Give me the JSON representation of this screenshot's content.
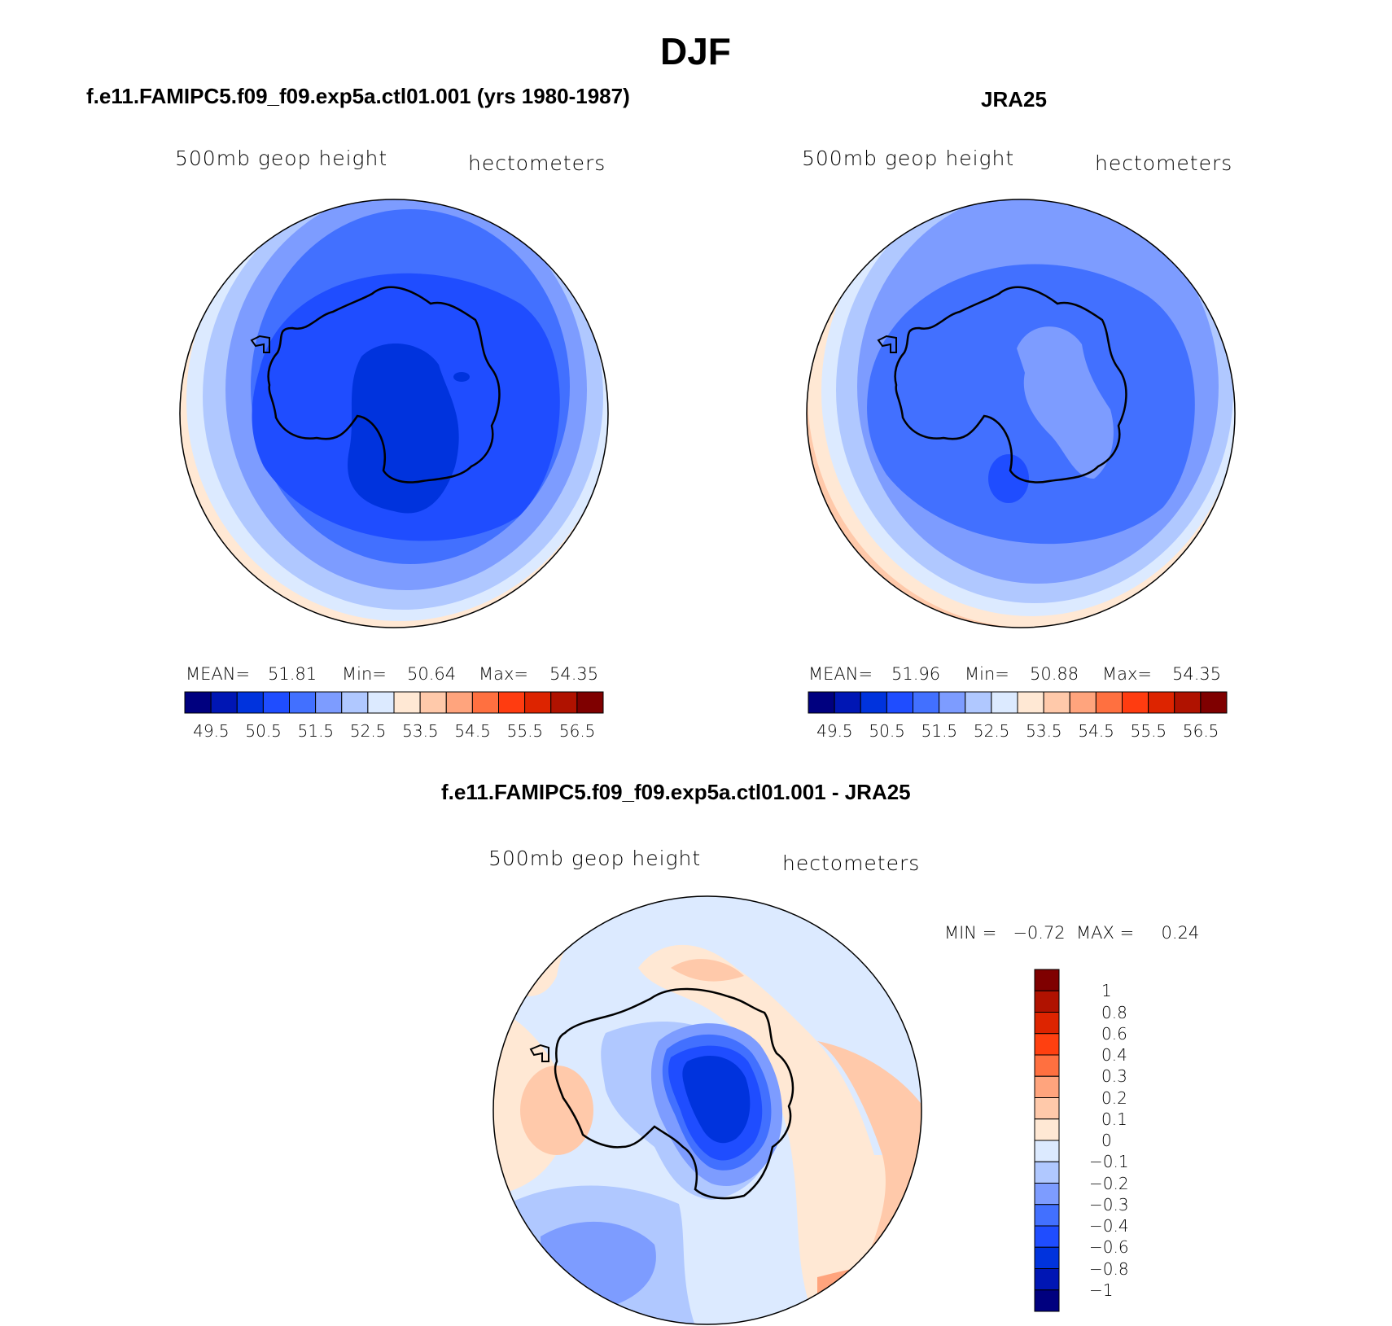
{
  "title": "DJF",
  "colors": {
    "scale": [
      "#00007f",
      "#0016b4",
      "#0033dd",
      "#1f4dff",
      "#4270ff",
      "#7d9cff",
      "#b0c8ff",
      "#dceaff",
      "#ffe8d4",
      "#ffc9aa",
      "#ffa47d",
      "#ff7040",
      "#ff3c10",
      "#dd2400",
      "#b01200",
      "#7f0000"
    ],
    "diff_scale": [
      "#00007f",
      "#0016b4",
      "#0033dd",
      "#1f4dff",
      "#4270ff",
      "#7d9cff",
      "#b0c8ff",
      "#dceaff",
      "#ffe8d4",
      "#ffc9aa",
      "#ffa47d",
      "#ff7040",
      "#ff4010",
      "#dd2400",
      "#b01200",
      "#7f0000"
    ]
  },
  "panels": [
    {
      "title": "f.e11.FAMIPC5.f09_f09.exp5a.ctl01.001 (yrs 1980-1987)",
      "left_label": "500mb  geop  height",
      "right_label": "hectometers",
      "stats": {
        "mean_label": "MEAN=",
        "mean": "51.81",
        "min_label": "Min=",
        "min": "50.64",
        "max_label": "Max=",
        "max": "54.35"
      },
      "colorbar_ticks": [
        "49.5",
        "50.5",
        "51.5",
        "52.5",
        "53.5",
        "54.5",
        "55.5",
        "56.5"
      ]
    },
    {
      "title": "JRA25",
      "left_label": "500mb  geop  height",
      "right_label": "hectometers",
      "stats": {
        "mean_label": "MEAN=",
        "mean": "51.96",
        "min_label": "Min=",
        "min": "50.88",
        "max_label": "Max=",
        "max": "54.35"
      },
      "colorbar_ticks": [
        "49.5",
        "50.5",
        "51.5",
        "52.5",
        "53.5",
        "54.5",
        "55.5",
        "56.5"
      ]
    }
  ],
  "diff_panel": {
    "title": "f.e11.FAMIPC5.f09_f09.exp5a.ctl01.001 - JRA25",
    "left_label": "500mb  geop  height",
    "right_label": "hectometers",
    "minmax": "MIN =   −0.72  MAX =     0.24",
    "colorbar_ticks": [
      "1",
      "0.8",
      "0.6",
      "0.4",
      "0.3",
      "0.2",
      "0.1",
      "0",
      "−0.1",
      "−0.2",
      "−0.3",
      "−0.4",
      "−0.6",
      "−0.8",
      "−1"
    ]
  },
  "chart_data": [
    {
      "type": "heatmap",
      "title": "f.e11.FAMIPC5.f09_f09.exp5a.ctl01.001 (yrs 1980-1987)",
      "variable": "500mb geop height",
      "units": "hectometers",
      "projection": "south-polar stereographic",
      "mean": 51.81,
      "min": 50.64,
      "max": 54.35,
      "contour_levels": [
        49.5,
        50,
        50.5,
        51,
        51.5,
        52,
        52.5,
        53,
        53.5,
        54,
        54.5,
        55,
        55.5,
        56,
        56.5
      ]
    },
    {
      "type": "heatmap",
      "title": "JRA25",
      "variable": "500mb geop height",
      "units": "hectometers",
      "projection": "south-polar stereographic",
      "mean": 51.96,
      "min": 50.88,
      "max": 54.35,
      "contour_levels": [
        49.5,
        50,
        50.5,
        51,
        51.5,
        52,
        52.5,
        53,
        53.5,
        54,
        54.5,
        55,
        55.5,
        56,
        56.5
      ]
    },
    {
      "type": "heatmap",
      "title": "f.e11.FAMIPC5.f09_f09.exp5a.ctl01.001 - JRA25",
      "variable": "500mb geop height",
      "units": "hectometers",
      "projection": "south-polar stereographic",
      "min": -0.72,
      "max": 0.24,
      "contour_levels": [
        -1,
        -0.8,
        -0.6,
        -0.4,
        -0.3,
        -0.2,
        -0.1,
        0,
        0.1,
        0.2,
        0.3,
        0.4,
        0.6,
        0.8,
        1
      ]
    }
  ]
}
